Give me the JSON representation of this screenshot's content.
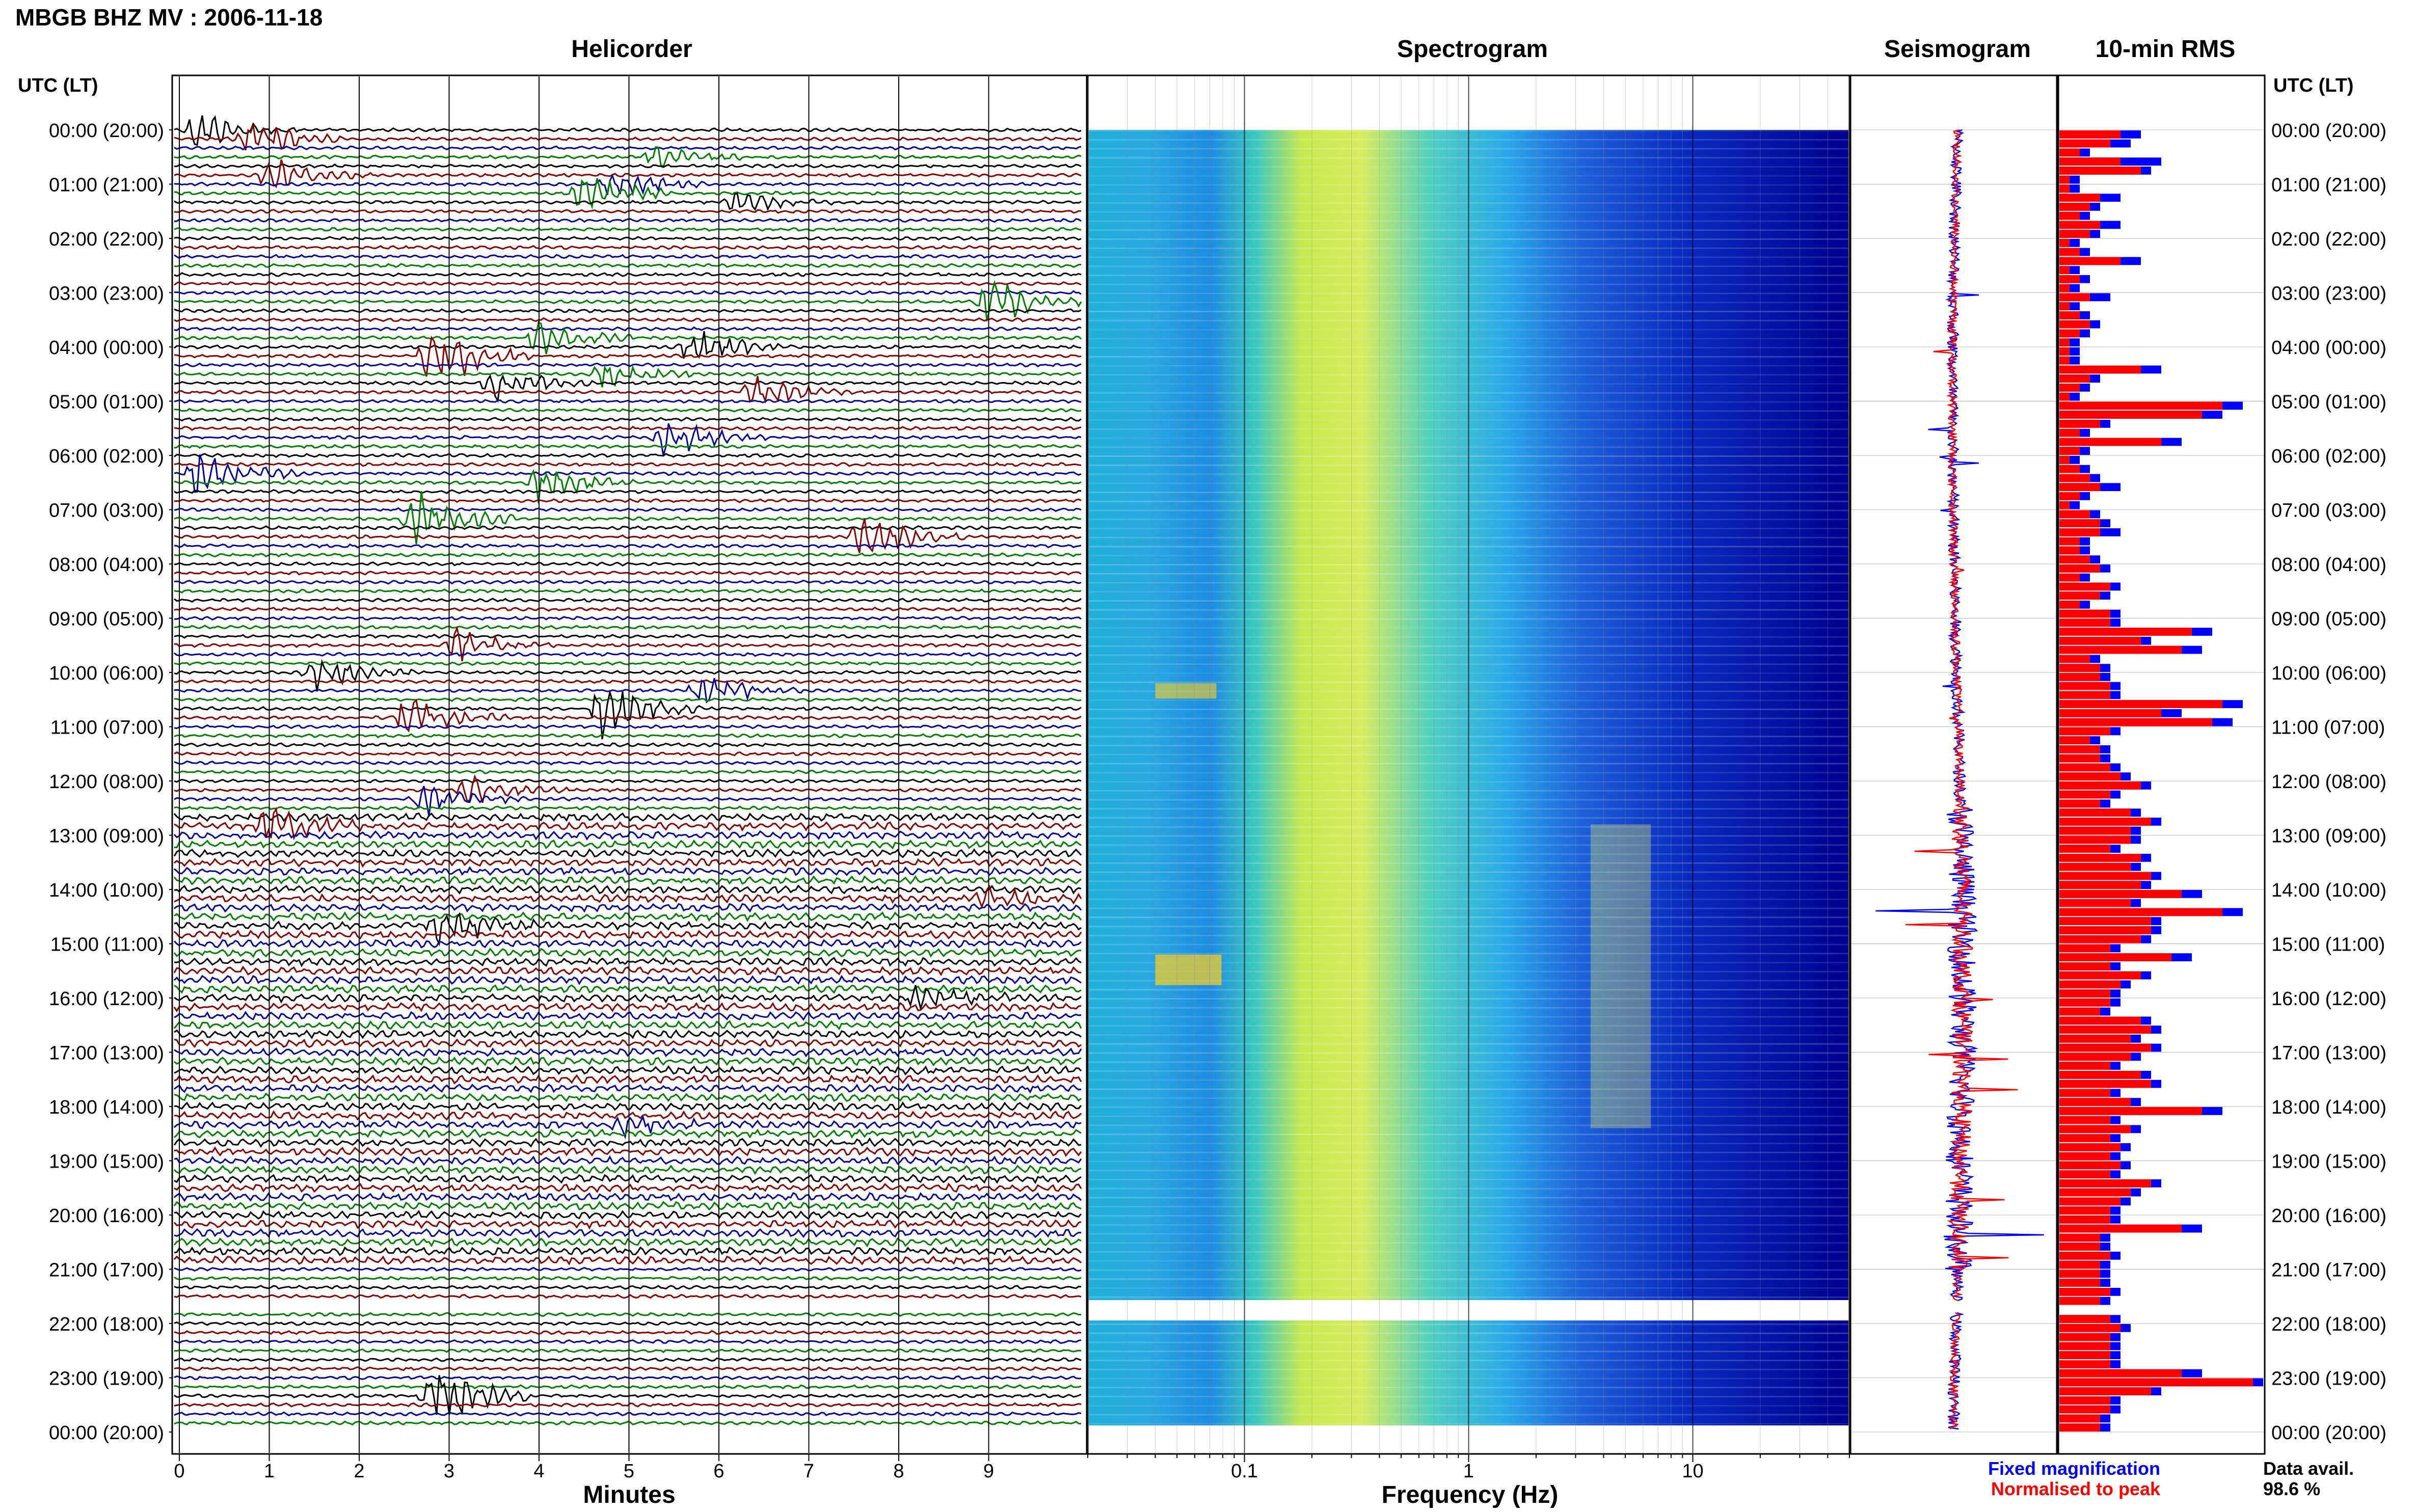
{
  "header": {
    "station_title": "MBGB BHZ MV : 2006-11-18"
  },
  "panels": {
    "helicorder": "Helicorder",
    "spectrogram": "Spectrogram",
    "seismogram": "Seismogram",
    "rms": "10-min RMS"
  },
  "axis_labels": {
    "utc_left": "UTC (LT)",
    "utc_right": "UTC (LT)",
    "minutes": "Minutes",
    "frequency": "Frequency (Hz)"
  },
  "legend": {
    "fixed": "Fixed magnification",
    "normalised": "Normalised to peak",
    "fixed_color": "#0000ff",
    "normalised_color": "#ff0000"
  },
  "data_avail": {
    "label": "Data avail.",
    "value": "98.6 %"
  },
  "colors": {
    "trace_cycle": [
      "#000000",
      "#8b0000",
      "#0000a0",
      "#008000"
    ],
    "spectrogram_low": "#00008b",
    "spectrogram_high": "#ffff00"
  },
  "chart_data": {
    "type": "heatmap",
    "time_ticks": [
      "00:00 (20:00)",
      "01:00 (21:00)",
      "02:00 (22:00)",
      "03:00 (23:00)",
      "04:00 (00:00)",
      "05:00 (01:00)",
      "06:00 (02:00)",
      "07:00 (03:00)",
      "08:00 (04:00)",
      "09:00 (05:00)",
      "10:00 (06:00)",
      "11:00 (07:00)",
      "12:00 (08:00)",
      "13:00 (09:00)",
      "14:00 (10:00)",
      "15:00 (11:00)",
      "16:00 (12:00)",
      "17:00 (13:00)",
      "18:00 (14:00)",
      "19:00 (15:00)",
      "20:00 (16:00)",
      "21:00 (17:00)",
      "22:00 (18:00)",
      "23:00 (19:00)",
      "00:00 (20:00)"
    ],
    "minutes_ticks": [
      "0",
      "1",
      "2",
      "3",
      "4",
      "5",
      "6",
      "7",
      "8",
      "9"
    ],
    "frequency_ticks": [
      "0.1",
      "1",
      "10"
    ],
    "frequency_range_hz": [
      0.02,
      50
    ],
    "frequency_scale": "log",
    "minutes_range": [
      0,
      10
    ],
    "data_gap_hours": [
      21.6,
      21.8
    ],
    "rms_series": [
      {
        "name": "Fixed magnification",
        "values": [
          0.4,
          0.35,
          0.15,
          0.5,
          0.45,
          0.1,
          0.1,
          0.3,
          0.2,
          0.15,
          0.3,
          0.2,
          0.1,
          0.15,
          0.4,
          0.1,
          0.15,
          0.1,
          0.25,
          0.1,
          0.15,
          0.2,
          0.15,
          0.1,
          0.1,
          0.1,
          0.5,
          0.2,
          0.15,
          0.1,
          0.9,
          0.8,
          0.25,
          0.15,
          0.6,
          0.15,
          0.1,
          0.15,
          0.2,
          0.3,
          0.15,
          0.1,
          0.2,
          0.25,
          0.3,
          0.15,
          0.15,
          0.2,
          0.25,
          0.15,
          0.3,
          0.25,
          0.15,
          0.3,
          0.3,
          0.75,
          0.45,
          0.7,
          0.2,
          0.25,
          0.25,
          0.3,
          0.3,
          0.9,
          0.6,
          0.85,
          0.3,
          0.2,
          0.25,
          0.25,
          0.3,
          0.35,
          0.45,
          0.3,
          0.25,
          0.4,
          0.5,
          0.4,
          0.4,
          0.3,
          0.45,
          0.4,
          0.5,
          0.45,
          0.7,
          0.4,
          0.9,
          0.5,
          0.5,
          0.45,
          0.3,
          0.65,
          0.3,
          0.45,
          0.35,
          0.3,
          0.3,
          0.25,
          0.45,
          0.5,
          0.4,
          0.5,
          0.4,
          0.3,
          0.45,
          0.5,
          0.3,
          0.4,
          0.8,
          0.3,
          0.4,
          0.3,
          0.35,
          0.3,
          0.35,
          0.3,
          0.5,
          0.4,
          0.35,
          0.3,
          0.3,
          0.7,
          0.25,
          0.25,
          0.3,
          0.25,
          0.25,
          0.25,
          0.3,
          0.25,
          0.25,
          0.3,
          0.35,
          0.3,
          0.3,
          0.3,
          0.3,
          0.7,
          1.0,
          0.5,
          0.3,
          0.3,
          0.25,
          0.25
        ]
      },
      {
        "name": "Normalised to peak",
        "values": [
          0.3,
          0.25,
          0.1,
          0.3,
          0.4,
          0.05,
          0.05,
          0.2,
          0.15,
          0.1,
          0.2,
          0.15,
          0.05,
          0.1,
          0.3,
          0.05,
          0.1,
          0.05,
          0.15,
          0.05,
          0.1,
          0.15,
          0.1,
          0.05,
          0.05,
          0.05,
          0.4,
          0.15,
          0.1,
          0.05,
          0.8,
          0.7,
          0.2,
          0.1,
          0.5,
          0.1,
          0.05,
          0.1,
          0.15,
          0.2,
          0.1,
          0.05,
          0.15,
          0.2,
          0.2,
          0.1,
          0.1,
          0.15,
          0.2,
          0.1,
          0.25,
          0.2,
          0.1,
          0.25,
          0.25,
          0.65,
          0.4,
          0.6,
          0.15,
          0.2,
          0.2,
          0.25,
          0.25,
          0.8,
          0.5,
          0.75,
          0.25,
          0.15,
          0.2,
          0.2,
          0.25,
          0.3,
          0.4,
          0.25,
          0.2,
          0.35,
          0.45,
          0.35,
          0.35,
          0.25,
          0.4,
          0.35,
          0.45,
          0.4,
          0.6,
          0.35,
          0.8,
          0.45,
          0.45,
          0.4,
          0.25,
          0.55,
          0.25,
          0.4,
          0.3,
          0.25,
          0.25,
          0.2,
          0.4,
          0.45,
          0.35,
          0.45,
          0.35,
          0.25,
          0.4,
          0.45,
          0.25,
          0.35,
          0.7,
          0.25,
          0.35,
          0.25,
          0.3,
          0.25,
          0.3,
          0.25,
          0.45,
          0.35,
          0.3,
          0.25,
          0.25,
          0.6,
          0.2,
          0.2,
          0.25,
          0.2,
          0.2,
          0.2,
          0.25,
          0.2,
          0.2,
          0.25,
          0.3,
          0.25,
          0.25,
          0.25,
          0.25,
          0.6,
          0.95,
          0.45,
          0.25,
          0.25,
          0.2,
          0.2
        ]
      }
    ]
  }
}
